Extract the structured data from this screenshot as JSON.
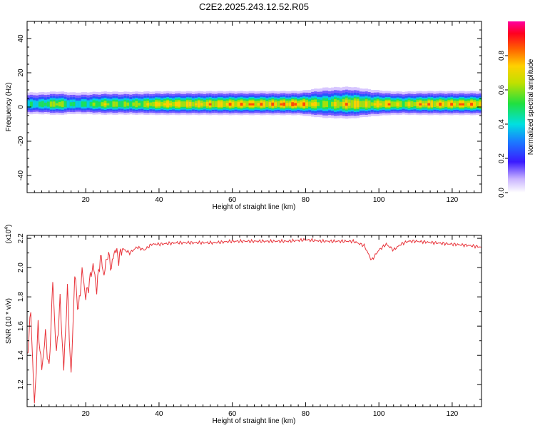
{
  "title": "C2E2.2025.243.12.52.R05",
  "chart_data": [
    {
      "type": "heatmap",
      "xlabel": "Height of straight line (km)",
      "ylabel": "Frequency (Hz)",
      "xlim": [
        4,
        128
      ],
      "ylim": [
        -50,
        50
      ],
      "x_ticks": [
        20,
        40,
        60,
        80,
        100,
        120
      ],
      "y_ticks": [
        -40,
        -20,
        0,
        20,
        40
      ],
      "grid": false,
      "colorbar": {
        "label": "Normalized spectral amplitude",
        "range": [
          0,
          1
        ],
        "ticks": [
          "0.0",
          "0.2",
          "0.4",
          "0.6",
          "0.8"
        ]
      },
      "band": {
        "center_freq_hz": 1.5,
        "notes": "Narrow high-amplitude band near 0-3 Hz across all heights"
      },
      "profile": [
        {
          "x": 4,
          "width_hz": 3,
          "peak": 0.55
        },
        {
          "x": 8,
          "width_hz": 3,
          "peak": 0.6
        },
        {
          "x": 12,
          "width_hz": 3,
          "peak": 0.8
        },
        {
          "x": 16,
          "width_hz": 3,
          "peak": 0.55
        },
        {
          "x": 20,
          "width_hz": 3,
          "peak": 0.6
        },
        {
          "x": 25,
          "width_hz": 3,
          "peak": 0.75
        },
        {
          "x": 30,
          "width_hz": 3,
          "peak": 0.7
        },
        {
          "x": 35,
          "width_hz": 3,
          "peak": 0.75
        },
        {
          "x": 40,
          "width_hz": 3,
          "peak": 0.85
        },
        {
          "x": 50,
          "width_hz": 3,
          "peak": 0.85
        },
        {
          "x": 60,
          "width_hz": 3,
          "peak": 0.9
        },
        {
          "x": 70,
          "width_hz": 3,
          "peak": 0.9
        },
        {
          "x": 78,
          "width_hz": 3,
          "peak": 0.95
        },
        {
          "x": 85,
          "width_hz": 4,
          "peak": 0.7
        },
        {
          "x": 92,
          "width_hz": 4,
          "peak": 0.9
        },
        {
          "x": 97,
          "width_hz": 3.5,
          "peak": 0.8
        },
        {
          "x": 102,
          "width_hz": 3,
          "peak": 0.9
        },
        {
          "x": 106,
          "width_hz": 3,
          "peak": 0.75
        },
        {
          "x": 112,
          "width_hz": 3,
          "peak": 0.9
        },
        {
          "x": 120,
          "width_hz": 3,
          "peak": 0.9
        },
        {
          "x": 128,
          "width_hz": 3,
          "peak": 0.9
        }
      ]
    },
    {
      "type": "line",
      "xlabel": "Height of straight line (km)",
      "ylabel": "SNR (10 * v/v)",
      "y_multiplier": "(x10^4)",
      "xlim": [
        4,
        128
      ],
      "ylim": [
        1.05,
        2.22
      ],
      "x_ticks": [
        20,
        40,
        60,
        80,
        100,
        120
      ],
      "y_ticks": [
        1.2,
        1.4,
        1.6,
        1.8,
        2.0,
        2.2
      ],
      "grid": false,
      "series": [
        {
          "color": "#e8333a",
          "x": [
            4,
            5,
            6,
            7,
            8,
            9,
            10,
            11,
            12,
            13,
            14,
            15,
            16,
            17,
            18,
            19,
            20,
            21,
            22,
            23,
            24,
            25,
            26,
            27,
            28,
            29,
            30,
            32,
            34,
            36,
            38,
            40,
            45,
            50,
            55,
            60,
            65,
            70,
            75,
            80,
            85,
            90,
            93,
            96,
            98,
            100,
            102,
            104,
            106,
            108,
            110,
            115,
            120,
            125,
            128
          ],
          "y": [
            1.38,
            1.7,
            1.05,
            1.6,
            1.3,
            1.55,
            1.3,
            1.9,
            1.4,
            1.78,
            1.3,
            1.86,
            1.25,
            1.95,
            1.7,
            1.98,
            1.8,
            1.9,
            2.02,
            1.85,
            2.08,
            1.95,
            2.1,
            2.0,
            2.13,
            2.06,
            2.13,
            2.1,
            2.14,
            2.12,
            2.16,
            2.16,
            2.17,
            2.17,
            2.17,
            2.18,
            2.18,
            2.18,
            2.18,
            2.19,
            2.18,
            2.18,
            2.18,
            2.15,
            2.05,
            2.12,
            2.16,
            2.12,
            2.16,
            2.18,
            2.18,
            2.17,
            2.16,
            2.15,
            2.14
          ]
        }
      ]
    }
  ]
}
